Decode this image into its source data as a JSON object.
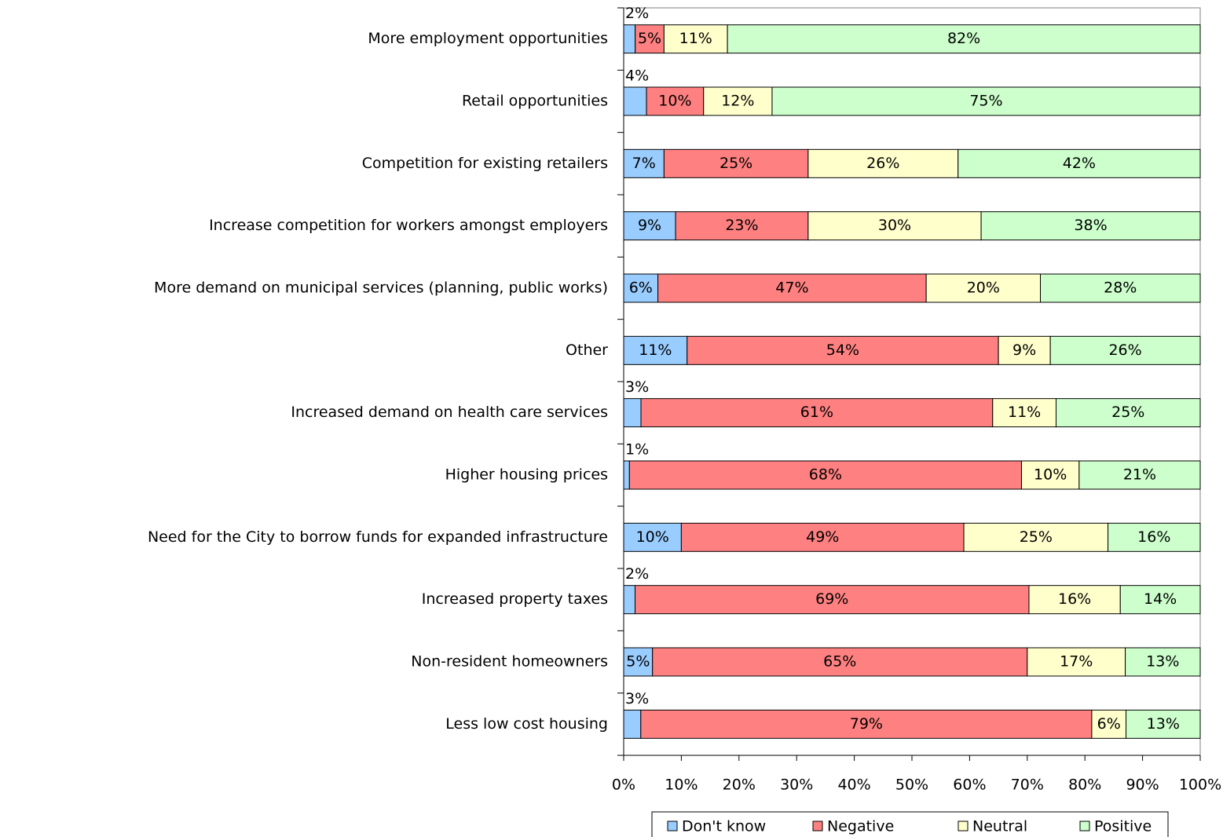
{
  "chart_data": {
    "type": "bar",
    "orientation": "horizontal",
    "stacked": "percent",
    "categories": [
      "More employment opportunities",
      "Retail opportunities",
      "Competition for existing retailers",
      "Increase competition for workers amongst employers",
      "More demand on municipal services (planning, public works)",
      "Other",
      "Increased demand on health care services",
      "Higher housing prices",
      "Need for the City to borrow funds for expanded infrastructure",
      "Increased property taxes",
      "Non-resident homeowners",
      "Less low cost housing"
    ],
    "series": [
      {
        "name": "Don't know",
        "color": "#99ccff",
        "values": [
          2,
          4,
          7,
          9,
          6,
          11,
          3,
          1,
          10,
          2,
          5,
          3
        ],
        "value_labels": [
          "2%",
          "4%",
          "7%",
          "9%",
          "6%",
          "11%",
          "3%",
          "1%",
          "10%",
          "2%",
          "5%",
          "3%"
        ]
      },
      {
        "name": "Negative",
        "color": "#ff8080",
        "values": [
          5,
          10,
          25,
          23,
          47,
          54,
          61,
          68,
          49,
          69,
          65,
          79
        ],
        "value_labels": [
          "5%",
          "10%",
          "25%",
          "23%",
          "47%",
          "54%",
          "61%",
          "68%",
          "49%",
          "69%",
          "65%",
          "79%"
        ]
      },
      {
        "name": "Neutral",
        "color": "#ffffcc",
        "values": [
          11,
          12,
          26,
          30,
          20,
          9,
          11,
          10,
          25,
          16,
          17,
          6
        ],
        "value_labels": [
          "11%",
          "12%",
          "26%",
          "30%",
          "20%",
          "9%",
          "11%",
          "10%",
          "25%",
          "16%",
          "17%",
          "6%"
        ]
      },
      {
        "name": "Positive",
        "color": "#ccffcc",
        "values": [
          82,
          75,
          42,
          38,
          28,
          26,
          25,
          21,
          16,
          14,
          13,
          13
        ],
        "value_labels": [
          "82%",
          "75%",
          "42%",
          "38%",
          "28%",
          "26%",
          "25%",
          "21%",
          "16%",
          "14%",
          "13%",
          "13%"
        ]
      }
    ],
    "xlim": [
      0,
      100
    ],
    "xticks": [
      {
        "value": 0,
        "label": "0%"
      },
      {
        "value": 10,
        "label": "10%"
      },
      {
        "value": 20,
        "label": "20%"
      },
      {
        "value": 30,
        "label": "30%"
      },
      {
        "value": 40,
        "label": "40%"
      },
      {
        "value": 50,
        "label": "50%"
      },
      {
        "value": 60,
        "label": "60%"
      },
      {
        "value": 70,
        "label": "70%"
      },
      {
        "value": 80,
        "label": "80%"
      },
      {
        "value": 90,
        "label": "90%"
      },
      {
        "value": 100,
        "label": "100%"
      }
    ],
    "legend": "bottom"
  }
}
